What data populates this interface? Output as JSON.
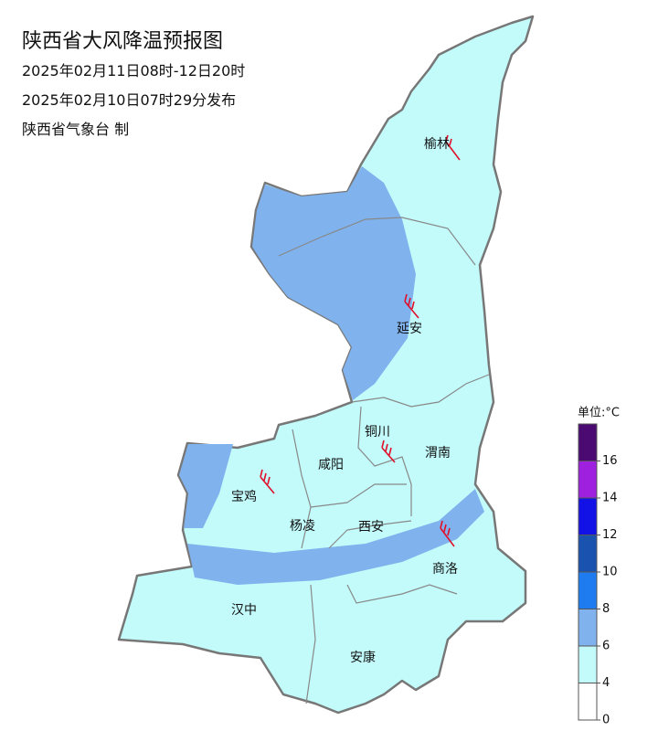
{
  "header": {
    "title": "陕西省大风降温预报图",
    "time_range": "2025年02月11日08时-12日20时",
    "issued": "2025年02月10日07时29分发布",
    "issuer": "陕西省气象台 制"
  },
  "cities": [
    "榆林",
    "延安",
    "铜川",
    "咸阳",
    "渭南",
    "宝鸡",
    "杨凌",
    "西安",
    "商洛",
    "汉中",
    "安康"
  ],
  "legend": {
    "unit": "单位:°C",
    "ticks": [
      0,
      4,
      6,
      8,
      10,
      12,
      14,
      16
    ],
    "colors": [
      "#ffffff",
      "#c3fbfb",
      "#80b2ee",
      "#1f7cf0",
      "#1a52b0",
      "#1212e6",
      "#a020e0",
      "#4a0a72"
    ]
  }
}
